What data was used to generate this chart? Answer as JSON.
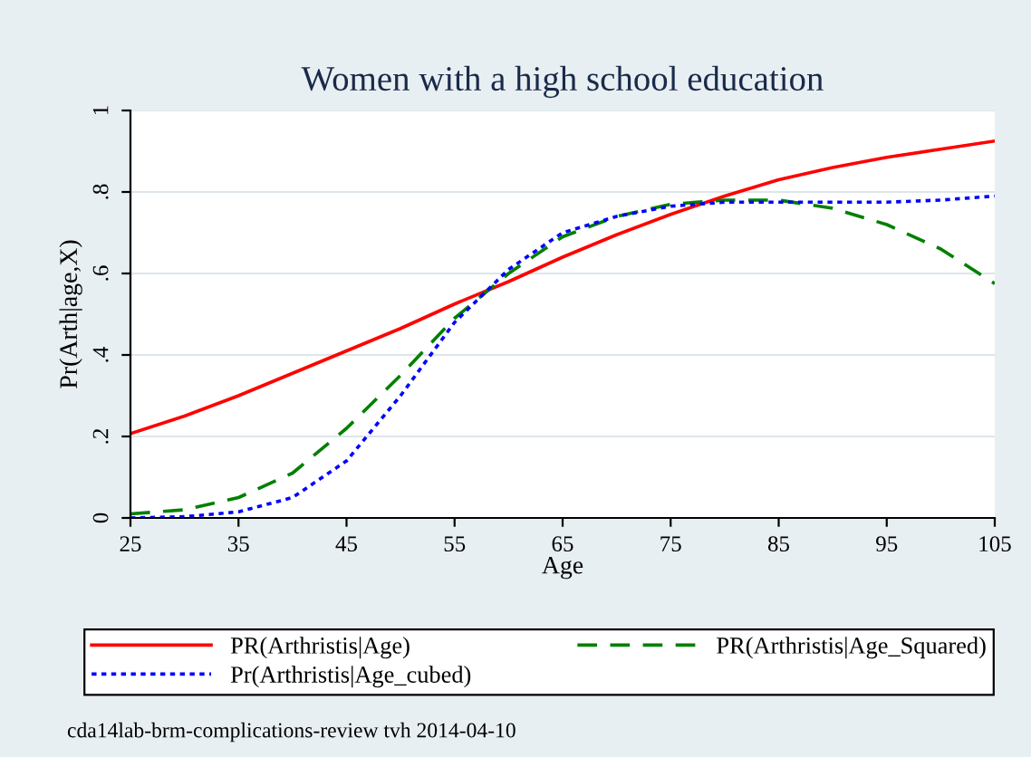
{
  "chart_data": {
    "type": "line",
    "title": "Women with a high school education",
    "xlabel": "Age",
    "ylabel": "Pr(Arth|age,X)",
    "x": [
      25,
      30,
      35,
      40,
      45,
      50,
      55,
      60,
      65,
      70,
      75,
      80,
      85,
      90,
      95,
      100,
      105
    ],
    "series": [
      {
        "name": "PR(Arthristis|Age)",
        "color": "#ff0000",
        "line_style": "solid",
        "values": [
          0.207,
          0.25,
          0.3,
          0.355,
          0.41,
          0.465,
          0.525,
          0.58,
          0.64,
          0.695,
          0.745,
          0.79,
          0.83,
          0.86,
          0.885,
          0.905,
          0.925
        ]
      },
      {
        "name": "PR(Arthristis|Age_Squared)",
        "color": "#008000",
        "line_style": "dashed",
        "values": [
          0.01,
          0.02,
          0.05,
          0.11,
          0.22,
          0.35,
          0.49,
          0.6,
          0.69,
          0.74,
          0.77,
          0.78,
          0.78,
          0.76,
          0.72,
          0.66,
          0.575
        ]
      },
      {
        "name": "Pr(Arthristis|Age_cubed)",
        "color": "#0000ff",
        "line_style": "dotted",
        "values": [
          0.0,
          0.003,
          0.015,
          0.05,
          0.14,
          0.3,
          0.48,
          0.61,
          0.7,
          0.74,
          0.765,
          0.775,
          0.775,
          0.775,
          0.775,
          0.78,
          0.79
        ]
      }
    ],
    "xlim": [
      25,
      105
    ],
    "ylim": [
      0,
      1
    ],
    "xticks": [
      25,
      35,
      45,
      55,
      65,
      75,
      85,
      95,
      105
    ],
    "yticks": [
      {
        "value": 0,
        "label": "0"
      },
      {
        "value": 0.2,
        "label": ".2"
      },
      {
        "value": 0.4,
        "label": ".4"
      },
      {
        "value": 0.6,
        "label": ".6"
      },
      {
        "value": 0.8,
        "label": ".8"
      },
      {
        "value": 1,
        "label": "1"
      }
    ],
    "grid": "y",
    "legend": "bottom",
    "marker": "none",
    "annotations": [
      "cda14lab-brm-complications-review tvh 2014-04-10"
    ]
  }
}
